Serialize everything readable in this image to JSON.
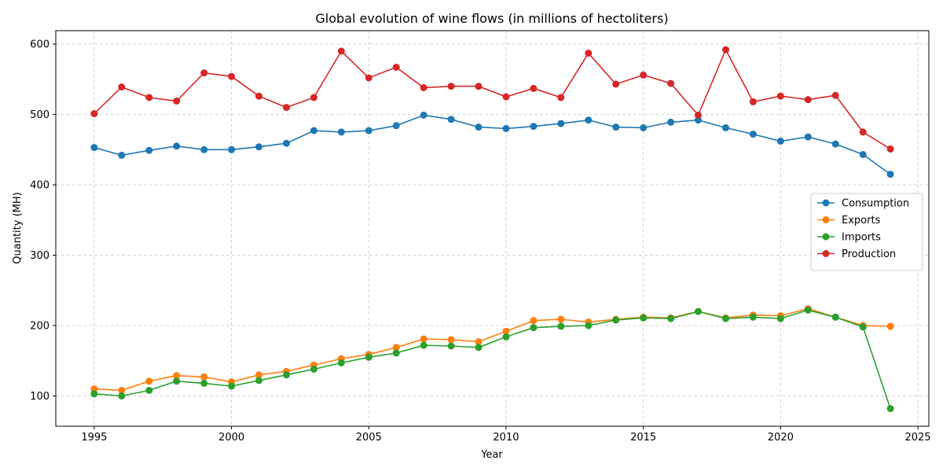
{
  "chart_data": {
    "type": "line",
    "title": "Global evolution of wine flows (in millions of hectoliters)",
    "xlabel": "Year",
    "ylabel": "Quantity (MH)",
    "xlim": [
      1993.6,
      2025.4
    ],
    "ylim": [
      57,
      619
    ],
    "xticks": [
      1995,
      2000,
      2005,
      2010,
      2015,
      2020,
      2025
    ],
    "yticks": [
      100,
      200,
      300,
      400,
      500,
      600
    ],
    "grid": true,
    "legend_position": "right",
    "x": [
      1995,
      1996,
      1997,
      1998,
      1999,
      2000,
      2001,
      2002,
      2003,
      2004,
      2005,
      2006,
      2007,
      2008,
      2009,
      2010,
      2011,
      2012,
      2013,
      2014,
      2015,
      2016,
      2017,
      2018,
      2019,
      2020,
      2021,
      2022,
      2023,
      2024
    ],
    "series": [
      {
        "name": "Consumption",
        "color": "#1f77b4",
        "values": [
          453,
          442,
          449,
          455,
          450,
          450,
          454,
          459,
          477,
          475,
          477,
          484,
          499,
          493,
          482,
          480,
          483,
          487,
          492,
          482,
          481,
          489,
          492,
          481,
          472,
          462,
          468,
          458,
          443,
          415
        ]
      },
      {
        "name": "Exports",
        "color": "#ff7f0e",
        "values": [
          110,
          108,
          121,
          129,
          127,
          120,
          130,
          135,
          144,
          153,
          159,
          169,
          181,
          180,
          177,
          192,
          207,
          209,
          205,
          209,
          212,
          211,
          220,
          211,
          215,
          214,
          224,
          212,
          200,
          199
        ]
      },
      {
        "name": "Imports",
        "color": "#2ca02c",
        "values": [
          103,
          100,
          108,
          121,
          118,
          114,
          122,
          130,
          138,
          147,
          155,
          161,
          172,
          171,
          169,
          184,
          197,
          199,
          200,
          208,
          211,
          210,
          220,
          210,
          212,
          210,
          222,
          212,
          198,
          82
        ]
      },
      {
        "name": "Production",
        "color": "#d62728",
        "values": [
          501,
          539,
          524,
          519,
          559,
          554,
          526,
          510,
          524,
          590,
          552,
          567,
          538,
          540,
          540,
          525,
          537,
          524,
          587,
          543,
          556,
          544,
          499,
          592,
          518,
          526,
          521,
          527,
          475,
          451
        ]
      }
    ]
  }
}
